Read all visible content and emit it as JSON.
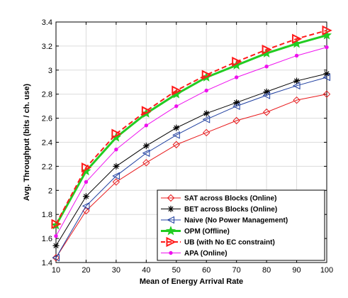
{
  "chart_data": {
    "type": "line",
    "title": "",
    "xlabel": "Mean of Energy Arrival Rate",
    "ylabel": "Avg. Throughput (bits / ch. use)",
    "x": [
      10,
      20,
      30,
      40,
      50,
      60,
      70,
      80,
      90,
      100
    ],
    "xlim": [
      10,
      100
    ],
    "ylim": [
      1.4,
      3.4
    ],
    "xticks": [
      10,
      20,
      30,
      40,
      50,
      60,
      70,
      80,
      90,
      100
    ],
    "yticks": [
      1.4,
      1.6,
      1.8,
      2,
      2.2,
      2.4,
      2.6,
      2.8,
      3,
      3.2,
      3.4
    ],
    "xtick_labels": [
      "10",
      "20",
      "30",
      "40",
      "50",
      "60",
      "70",
      "80",
      "90",
      "100"
    ],
    "ytick_labels": [
      "1.4",
      "1.6",
      "1.8",
      "2",
      "2.2",
      "2.4",
      "2.6",
      "2.8",
      "3",
      "3.2",
      "3.4"
    ],
    "grid": true,
    "legend_position": "bottom-right",
    "series": [
      {
        "name": "SAT across Blocks (Online)",
        "color": "#e8191b",
        "marker": "diamond",
        "dash": "solid",
        "width": 1,
        "values": [
          1.44,
          1.83,
          2.07,
          2.23,
          2.38,
          2.48,
          2.58,
          2.65,
          2.75,
          2.8
        ]
      },
      {
        "name": "BET across Blocks (Online)",
        "color": "#000000",
        "marker": "asterisk",
        "dash": "solid",
        "width": 1,
        "values": [
          1.54,
          1.95,
          2.2,
          2.37,
          2.52,
          2.64,
          2.73,
          2.82,
          2.91,
          2.97
        ]
      },
      {
        "name": "Naive (No Power Management)",
        "color": "#1f3fa0",
        "marker": "triangle-left",
        "dash": "solid",
        "width": 1,
        "values": [
          1.44,
          1.87,
          2.12,
          2.31,
          2.46,
          2.59,
          2.7,
          2.79,
          2.87,
          2.94
        ]
      },
      {
        "name": "OPM (Offline)",
        "color": "#22cc22",
        "marker": "star",
        "dash": "solid",
        "width": 3,
        "values": [
          1.71,
          2.16,
          2.44,
          2.64,
          2.8,
          2.94,
          3.04,
          3.14,
          3.22,
          3.29
        ]
      },
      {
        "name": "UB (with No EC constraint)",
        "color": "#ff1a1a",
        "marker": "triangle-right",
        "dash": "dashed",
        "width": 2,
        "values": [
          1.72,
          2.19,
          2.47,
          2.66,
          2.83,
          2.96,
          3.07,
          3.17,
          3.26,
          3.33
        ]
      },
      {
        "name": "APA (Online)",
        "color": "#ee11ee",
        "marker": "circle",
        "dash": "solid",
        "width": 1,
        "values": [
          1.62,
          2.07,
          2.34,
          2.54,
          2.7,
          2.83,
          2.94,
          3.03,
          3.12,
          3.19
        ]
      }
    ]
  }
}
